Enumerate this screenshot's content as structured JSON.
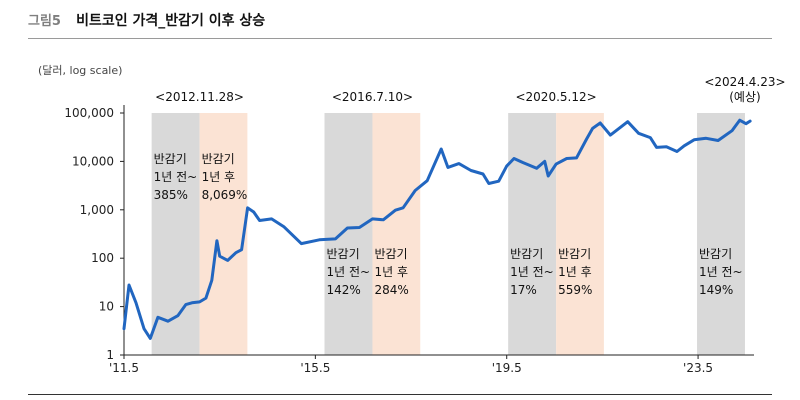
{
  "figure": {
    "label": "그림5",
    "title": "비트코인 가격_반감기 이후 상승",
    "unit": "(달러, log scale)"
  },
  "colors": {
    "line": "#2166c0",
    "before_band": "#d9d9d9",
    "after_band": "#fbe3d4",
    "axis": "#222222"
  },
  "chart_data": {
    "type": "line",
    "yscale": "log",
    "ylim": [
      1,
      100000
    ],
    "yticks": [
      1,
      10,
      100,
      1000,
      10000,
      100000
    ],
    "ytick_labels": [
      "1",
      "10",
      "100",
      "1,000",
      "10,000",
      "100,000"
    ],
    "xlim": [
      "2011-05-01",
      "2024-07-01"
    ],
    "xticks": [
      "2011-05-01",
      "2015-05-01",
      "2019-05-01",
      "2023-05-01"
    ],
    "xtick_labels": [
      "'11.5",
      "'15.5",
      "'19.5",
      "'23.5"
    ],
    "series": [
      {
        "x": [
          "2011-05-01",
          "2011-06-08",
          "2011-08-01",
          "2011-10-01",
          "2011-11-18",
          "2012-01-15",
          "2012-04-01",
          "2012-06-15",
          "2012-08-15",
          "2012-10-01",
          "2012-11-28",
          "2013-01-15",
          "2013-03-01",
          "2013-04-09",
          "2013-05-01",
          "2013-07-01",
          "2013-09-01",
          "2013-10-15",
          "2013-11-30",
          "2014-01-15",
          "2014-03-01",
          "2014-06-01",
          "2014-09-01",
          "2015-01-14",
          "2015-06-01",
          "2015-10-01",
          "2016-01-01",
          "2016-04-01",
          "2016-07-10",
          "2016-10-01",
          "2017-01-01",
          "2017-03-01",
          "2017-06-01",
          "2017-09-01",
          "2017-12-17",
          "2018-02-06",
          "2018-05-01",
          "2018-08-01",
          "2018-11-01",
          "2018-12-15",
          "2019-03-01",
          "2019-05-01",
          "2019-06-26",
          "2019-09-01",
          "2019-12-15",
          "2020-02-15",
          "2020-03-13",
          "2020-05-12",
          "2020-08-01",
          "2020-10-15",
          "2020-12-31",
          "2021-02-15",
          "2021-04-14",
          "2021-07-01",
          "2021-11-10",
          "2022-02-01",
          "2022-05-01",
          "2022-06-18",
          "2022-09-01",
          "2022-11-21",
          "2023-01-15",
          "2023-04-01",
          "2023-07-01",
          "2023-10-01",
          "2024-01-15",
          "2024-03-14",
          "2024-05-01",
          "2024-06-01"
        ],
        "y": [
          3.5,
          28,
          12,
          3.5,
          2.2,
          6,
          5,
          6.5,
          11,
          12,
          12.5,
          15,
          35,
          230,
          110,
          90,
          130,
          150,
          1100,
          900,
          600,
          650,
          450,
          200,
          240,
          250,
          420,
          430,
          650,
          620,
          980,
          1100,
          2500,
          4000,
          18000,
          7500,
          9000,
          6500,
          5500,
          3500,
          3900,
          8000,
          11500,
          9500,
          7200,
          10000,
          5000,
          8800,
          11500,
          11800,
          29000,
          48000,
          62000,
          35000,
          66000,
          38000,
          31000,
          19500,
          20000,
          16000,
          21000,
          28000,
          30000,
          27000,
          43000,
          71000,
          60000,
          68000
        ]
      }
    ],
    "bands": [
      {
        "type": "before",
        "start": "2011-11-28",
        "end": "2012-11-28",
        "lines": [
          "반감기",
          "1년 전~",
          "385%"
        ],
        "label_pos": "upper"
      },
      {
        "type": "after",
        "start": "2012-11-28",
        "end": "2013-11-28",
        "lines": [
          "반감기",
          "1년 후",
          "8,069%"
        ],
        "label_pos": "upper"
      },
      {
        "type": "before",
        "start": "2015-07-10",
        "end": "2016-07-10",
        "lines": [
          "반감기",
          "1년 전~",
          "142%"
        ],
        "label_pos": "lower"
      },
      {
        "type": "after",
        "start": "2016-07-10",
        "end": "2017-07-10",
        "lines": [
          "반감기",
          "1년 후",
          "284%"
        ],
        "label_pos": "lower"
      },
      {
        "type": "before",
        "start": "2019-05-12",
        "end": "2020-05-12",
        "lines": [
          "반감기",
          "1년 전~",
          "17%"
        ],
        "label_pos": "lower"
      },
      {
        "type": "after",
        "start": "2020-05-12",
        "end": "2021-05-12",
        "lines": [
          "반감기",
          "1년 후",
          "559%"
        ],
        "label_pos": "lower"
      },
      {
        "type": "before",
        "start": "2023-04-23",
        "end": "2024-04-23",
        "lines": [
          "반감기",
          "1년 전~",
          "149%"
        ],
        "label_pos": "lower"
      }
    ],
    "annotations": [
      {
        "date": "2012-11-28",
        "lines": [
          "<2012.11.28>"
        ]
      },
      {
        "date": "2016-07-10",
        "lines": [
          "<2016.7.10>"
        ]
      },
      {
        "date": "2020-05-12",
        "lines": [
          "<2020.5.12>"
        ]
      },
      {
        "date": "2024-04-23",
        "lines": [
          "<2024.4.23>",
          "(예상)"
        ]
      }
    ]
  }
}
